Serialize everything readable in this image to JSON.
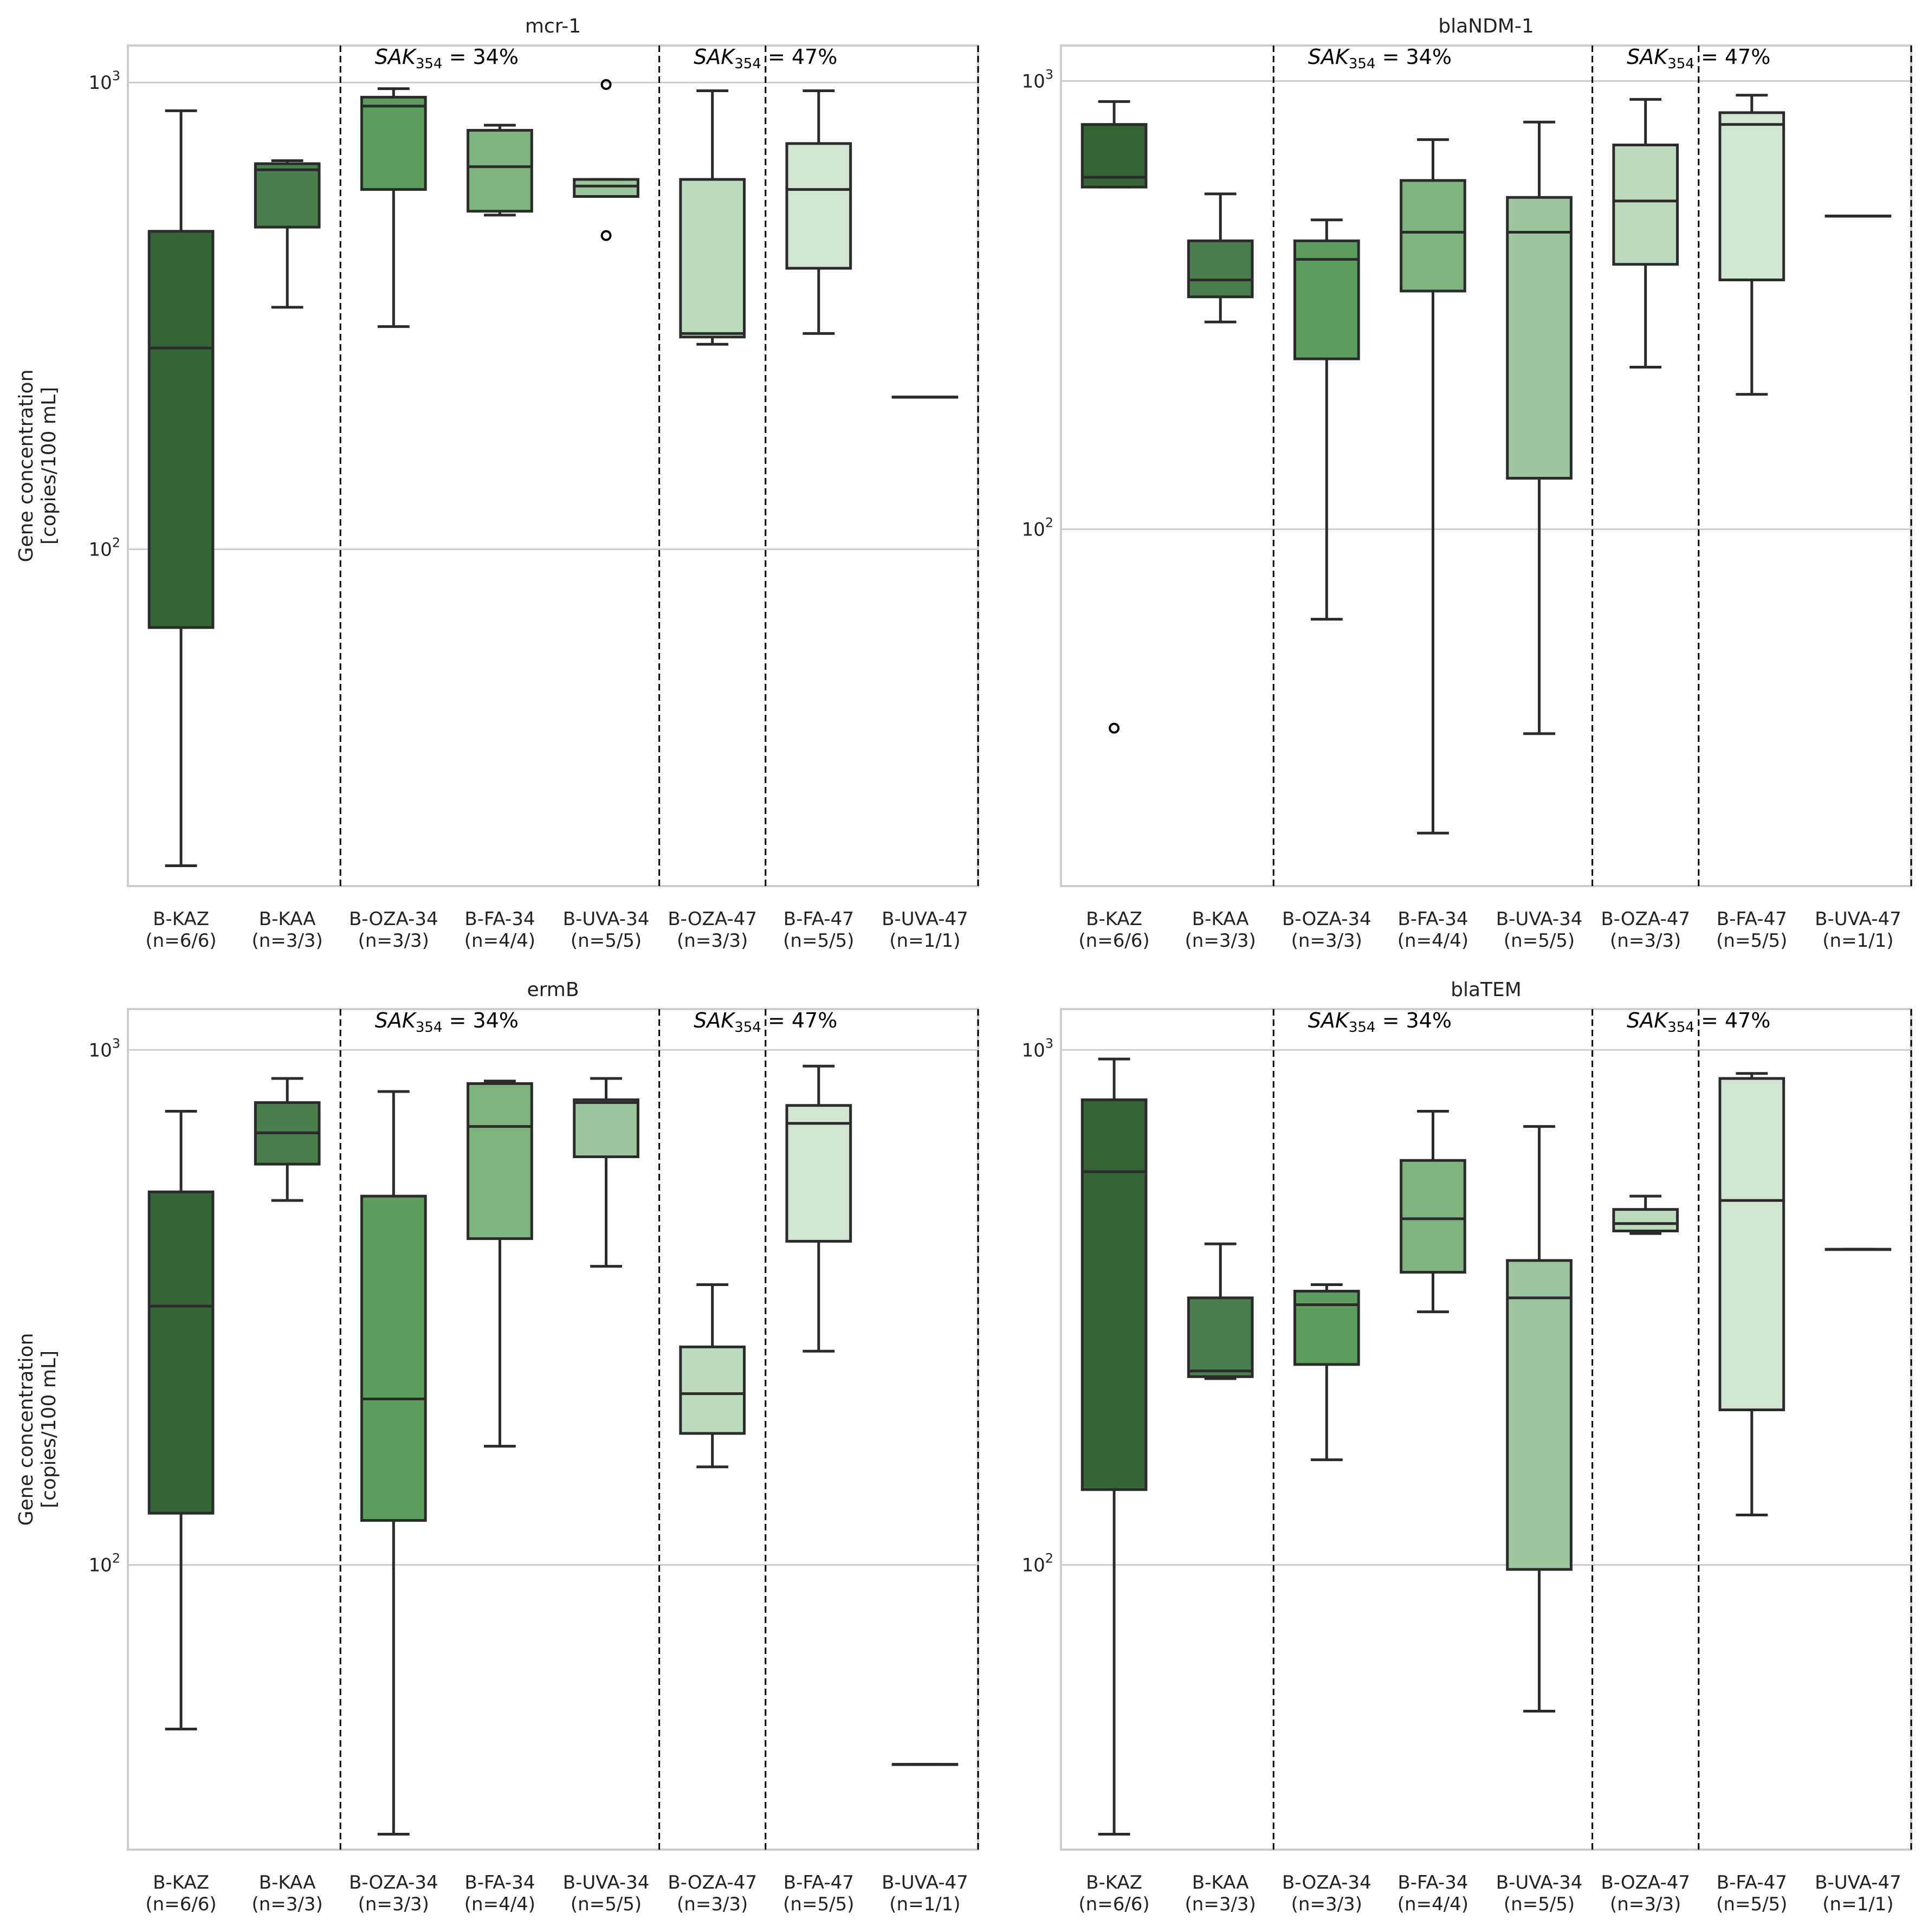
{
  "figure": {
    "y_label_line1": "Gene concentration",
    "y_label_line2": "[copies/100 mL]",
    "group_annotations": [
      {
        "base": "SAK",
        "sub": "354",
        "rest": " = 34%"
      },
      {
        "base": "SAK",
        "sub": "354",
        "rest": " = 47%"
      }
    ],
    "categories": [
      "B-KAZ",
      "B-KAA",
      "B-OZA-34",
      "B-FA-34",
      "B-UVA-34",
      "B-OZA-47",
      "B-FA-47",
      "B-UVA-47"
    ],
    "category_counts": [
      "(n=6/6)",
      "(n=3/3)",
      "(n=3/3)",
      "(n=4/4)",
      "(n=5/5)",
      "(n=3/3)",
      "(n=5/5)",
      "(n=1/1)"
    ],
    "colors": [
      "#356437",
      "#4a7f4d",
      "#5b9e5d",
      "#7eb37f",
      "#9cc59d",
      "#bcdabd",
      "#d2e5d3",
      "#e8f2e8"
    ],
    "yticks": [
      {
        "base": "10",
        "exp": "2",
        "value": 100
      },
      {
        "base": "10",
        "exp": "3",
        "value": 1000
      }
    ]
  },
  "chart_data": [
    {
      "type": "box",
      "title": "mcr-1",
      "scale": "log",
      "ylim": [
        19,
        1200
      ],
      "group_separators_after_index": [
        1.5,
        4.5,
        5.5,
        7.5
      ],
      "boxes": [
        {
          "min": 21,
          "q1": 68,
          "median": 270,
          "q3": 480,
          "max": 870,
          "fliers": []
        },
        {
          "min": 330,
          "q1": 490,
          "median": 650,
          "q3": 670,
          "max": 680,
          "fliers": []
        },
        {
          "min": 300,
          "q1": 590,
          "median": 890,
          "q3": 930,
          "max": 970,
          "fliers": []
        },
        {
          "min": 520,
          "q1": 530,
          "median": 660,
          "q3": 790,
          "max": 810,
          "fliers": []
        },
        {
          "min": 570,
          "q1": 570,
          "median": 600,
          "q3": 620,
          "max": 620,
          "fliers": [
            470,
            990
          ]
        },
        {
          "min": 275,
          "q1": 285,
          "median": 290,
          "q3": 620,
          "max": 960,
          "fliers": []
        },
        {
          "min": 290,
          "q1": 400,
          "median": 590,
          "q3": 740,
          "max": 960,
          "fliers": []
        },
        {
          "min": 212,
          "q1": 212,
          "median": 212,
          "q3": 212,
          "max": 212,
          "fliers": []
        }
      ]
    },
    {
      "type": "box",
      "title": "blaNDM-1",
      "scale": "log",
      "ylim": [
        16,
        1200
      ],
      "group_separators_after_index": [
        1.5,
        4.5,
        5.5,
        7.5
      ],
      "boxes": [
        {
          "min": 580,
          "q1": 580,
          "median": 610,
          "q3": 800,
          "max": 900,
          "fliers": [
            36
          ]
        },
        {
          "min": 290,
          "q1": 330,
          "median": 360,
          "q3": 440,
          "max": 560,
          "fliers": []
        },
        {
          "min": 63,
          "q1": 240,
          "median": 400,
          "q3": 440,
          "max": 490,
          "fliers": []
        },
        {
          "min": 21,
          "q1": 340,
          "median": 460,
          "q3": 600,
          "max": 740,
          "fliers": []
        },
        {
          "min": 35,
          "q1": 130,
          "median": 460,
          "q3": 550,
          "max": 810,
          "fliers": []
        },
        {
          "min": 230,
          "q1": 390,
          "median": 540,
          "q3": 720,
          "max": 910,
          "fliers": []
        },
        {
          "min": 200,
          "q1": 360,
          "median": 800,
          "q3": 850,
          "max": 930,
          "fliers": []
        },
        {
          "min": 500,
          "q1": 500,
          "median": 500,
          "q3": 500,
          "max": 500,
          "fliers": []
        }
      ]
    },
    {
      "type": "box",
      "title": "ermB",
      "scale": "log",
      "ylim": [
        28,
        1200
      ],
      "group_separators_after_index": [
        1.5,
        4.5,
        5.5,
        7.5
      ],
      "boxes": [
        {
          "min": 48,
          "q1": 126,
          "median": 318,
          "q3": 530,
          "max": 760,
          "fliers": []
        },
        {
          "min": 510,
          "q1": 600,
          "median": 690,
          "q3": 790,
          "max": 880,
          "fliers": []
        },
        {
          "min": 30,
          "q1": 122,
          "median": 210,
          "q3": 520,
          "max": 830,
          "fliers": []
        },
        {
          "min": 170,
          "q1": 430,
          "median": 710,
          "q3": 860,
          "max": 870,
          "fliers": []
        },
        {
          "min": 380,
          "q1": 620,
          "median": 790,
          "q3": 800,
          "max": 880,
          "fliers": []
        },
        {
          "min": 155,
          "q1": 180,
          "median": 215,
          "q3": 265,
          "max": 350,
          "fliers": []
        },
        {
          "min": 260,
          "q1": 425,
          "median": 720,
          "q3": 780,
          "max": 930,
          "fliers": []
        },
        {
          "min": 41,
          "q1": 41,
          "median": 41,
          "q3": 41,
          "max": 41,
          "fliers": []
        }
      ]
    },
    {
      "type": "box",
      "title": "blaTEM",
      "scale": "log",
      "ylim": [
        28,
        1200
      ],
      "group_separators_after_index": [
        1.5,
        4.5,
        5.5,
        7.5
      ],
      "boxes": [
        {
          "min": 30,
          "q1": 140,
          "median": 580,
          "q3": 800,
          "max": 960,
          "fliers": []
        },
        {
          "min": 230,
          "q1": 232,
          "median": 238,
          "q3": 330,
          "max": 420,
          "fliers": []
        },
        {
          "min": 160,
          "q1": 245,
          "median": 320,
          "q3": 340,
          "max": 350,
          "fliers": []
        },
        {
          "min": 310,
          "q1": 370,
          "median": 470,
          "q3": 610,
          "max": 760,
          "fliers": []
        },
        {
          "min": 52,
          "q1": 98,
          "median": 330,
          "q3": 390,
          "max": 710,
          "fliers": []
        },
        {
          "min": 440,
          "q1": 445,
          "median": 460,
          "q3": 490,
          "max": 520,
          "fliers": []
        },
        {
          "min": 125,
          "q1": 200,
          "median": 510,
          "q3": 880,
          "max": 900,
          "fliers": []
        },
        {
          "min": 410,
          "q1": 410,
          "median": 410,
          "q3": 410,
          "max": 410,
          "fliers": []
        }
      ]
    }
  ]
}
